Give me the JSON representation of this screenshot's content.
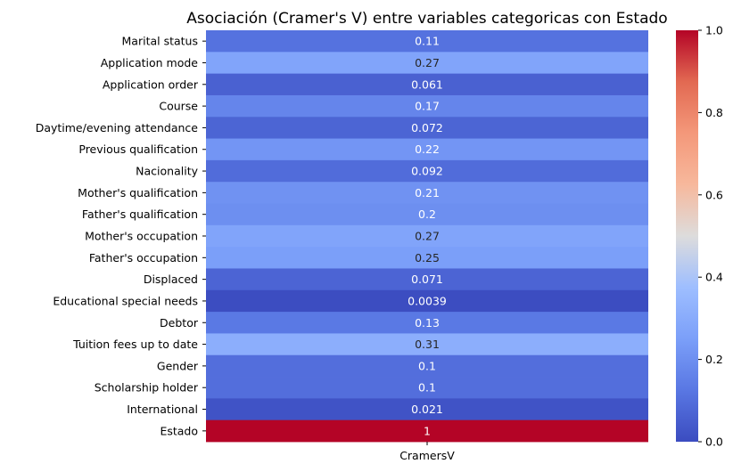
{
  "chart_data": {
    "type": "heatmap",
    "title": "Asociación (Cramer's V) entre variables categoricas con Estado",
    "xlabel": "",
    "ylabel": "",
    "columns": [
      "CramersV"
    ],
    "rows": [
      "Marital status",
      "Application mode",
      "Application order",
      "Course",
      "Daytime/evening attendance\t",
      "Previous qualification",
      "Nacionality",
      "Mother's qualification",
      "Father's qualification",
      "Mother's occupation",
      "Father's occupation",
      "Displaced",
      "Educational special needs",
      "Debtor",
      "Tuition fees up to date",
      "Gender",
      "Scholarship holder",
      "International",
      "Estado"
    ],
    "values": [
      0.11,
      0.27,
      0.061,
      0.17,
      0.072,
      0.22,
      0.092,
      0.21,
      0.2,
      0.27,
      0.25,
      0.071,
      0.0039,
      0.13,
      0.31,
      0.1,
      0.1,
      0.021,
      1
    ],
    "value_labels": [
      "0.11",
      "0.27",
      "0.061",
      "0.17",
      "0.072",
      "0.22",
      "0.092",
      "0.21",
      "0.2",
      "0.27",
      "0.25",
      "0.071",
      "0.0039",
      "0.13",
      "0.31",
      "0.1",
      "0.1",
      "0.021",
      "1"
    ],
    "colormap": "coolwarm",
    "colorbar": {
      "range": [
        0,
        1
      ],
      "ticks": [
        0,
        0.2,
        0.4,
        0.6,
        0.8,
        1.0
      ],
      "tick_labels": [
        "0.0",
        "0.2",
        "0.4",
        "0.6",
        "0.8",
        "1.0"
      ]
    }
  }
}
